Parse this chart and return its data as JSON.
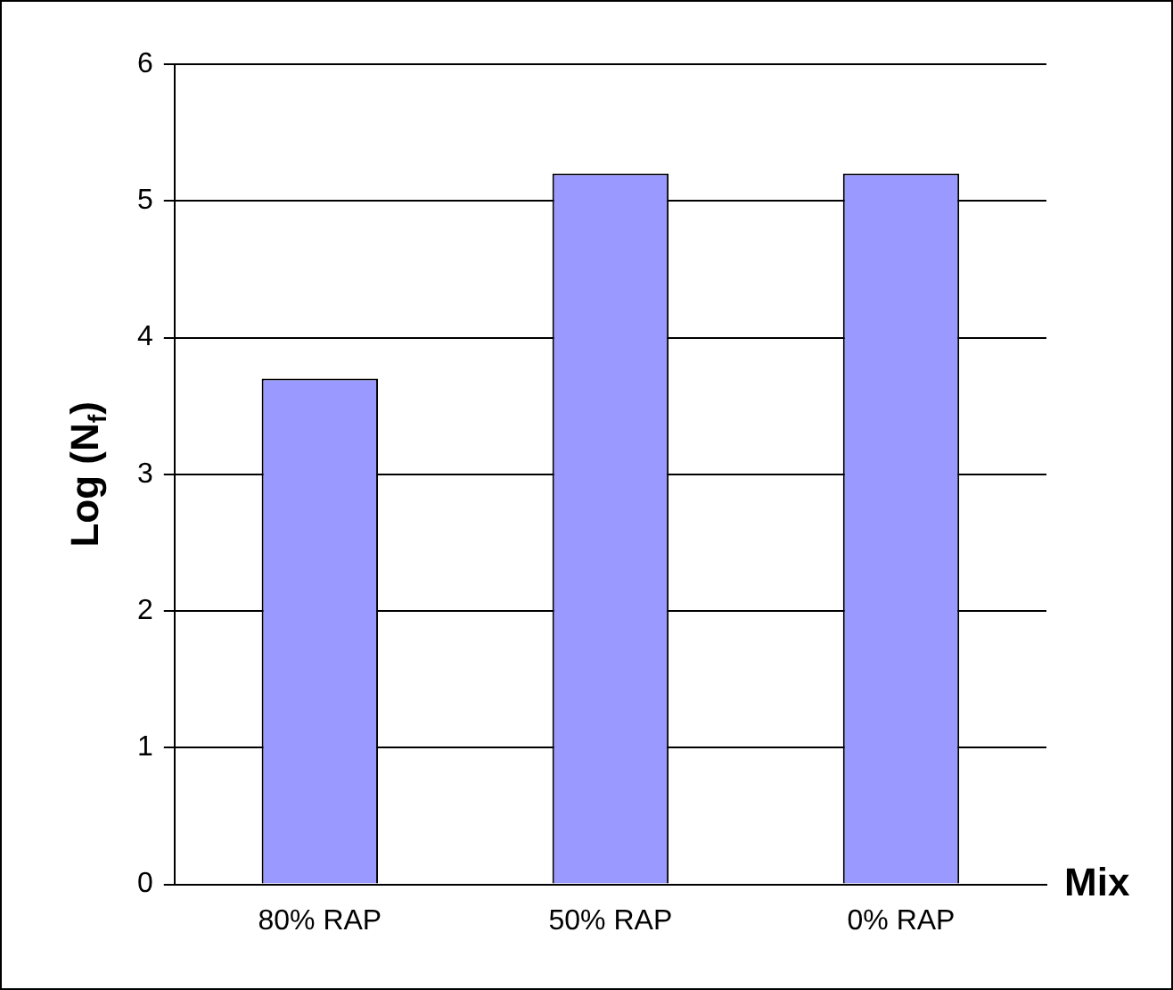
{
  "chart_data": {
    "type": "bar",
    "ylabel": "Log (N$_{f}$)",
    "xlabel": "Mix",
    "categories": [
      "80% RAP",
      "50% RAP",
      "0% RAP"
    ],
    "values": [
      3.7,
      5.2,
      5.2
    ],
    "color": "#9999ff",
    "ylim": [
      0,
      6
    ],
    "yticks": [
      0,
      1,
      2,
      3,
      4,
      5,
      6
    ],
    "grid": "y",
    "legend": false
  }
}
